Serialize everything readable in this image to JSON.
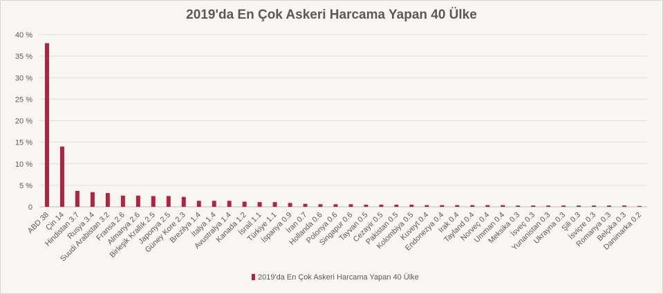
{
  "chart_data": {
    "type": "bar",
    "title": "2019'da En Çok Askeri Harcama Yapan 40 Ülke",
    "categories": [
      "ABD 38",
      "Çin 14",
      "Hindistan 3.7",
      "Rusya 3.4",
      "Suudi Arabistan 3.2",
      "Fransa 2.6",
      "Almanya 2.6",
      "Birleşik Krallık 2.5",
      "Japonya 2.5",
      "Güney Kore 2.3",
      "Brezilya 1.4",
      "İtalya 1.4",
      "Avustralya 1.4",
      "Kanada 1.2",
      "İsrail 1.1",
      "Türkiye 1.1",
      "İspanya 0.9",
      "İran 0.7",
      "Hollanda 0.6",
      "Polonya 0.6",
      "Singapur 0.6",
      "Tayvan 0.5",
      "Cezayir 0.5",
      "Pakistan 0.5",
      "Kolombiya 0.5",
      "Kuveyt 0.4",
      "Endonezya 0.4",
      "Irak 0.4",
      "Tayland 0.4",
      "Norveç 0.4",
      "Umman 0.4",
      "Meksika 0.3",
      "İsveç 0.3",
      "Yunanistan 0.3",
      "Ukrayna 0.3",
      "Şili 0.3",
      "İsviçre 0.3",
      "Romanya 0.3",
      "Belçika 0.3",
      "Danimarka 0.2"
    ],
    "values": [
      38,
      14,
      3.7,
      3.4,
      3.2,
      2.6,
      2.6,
      2.5,
      2.5,
      2.3,
      1.4,
      1.4,
      1.4,
      1.2,
      1.1,
      1.1,
      0.9,
      0.7,
      0.6,
      0.6,
      0.6,
      0.5,
      0.5,
      0.5,
      0.5,
      0.4,
      0.4,
      0.4,
      0.4,
      0.4,
      0.4,
      0.3,
      0.3,
      0.3,
      0.3,
      0.3,
      0.3,
      0.3,
      0.3,
      0.2
    ],
    "ylim": [
      0,
      40
    ],
    "yticks": [
      "0",
      "5 %",
      "10 %",
      "15 %",
      "20 %",
      "25 %",
      "30 %",
      "35 %",
      "40 %"
    ],
    "grid": true,
    "legend": {
      "position": "bottom",
      "label": "2019'da En Çok Askeri Harcama Yapan 40 Ülke"
    },
    "bar_color": "#b5223f"
  }
}
